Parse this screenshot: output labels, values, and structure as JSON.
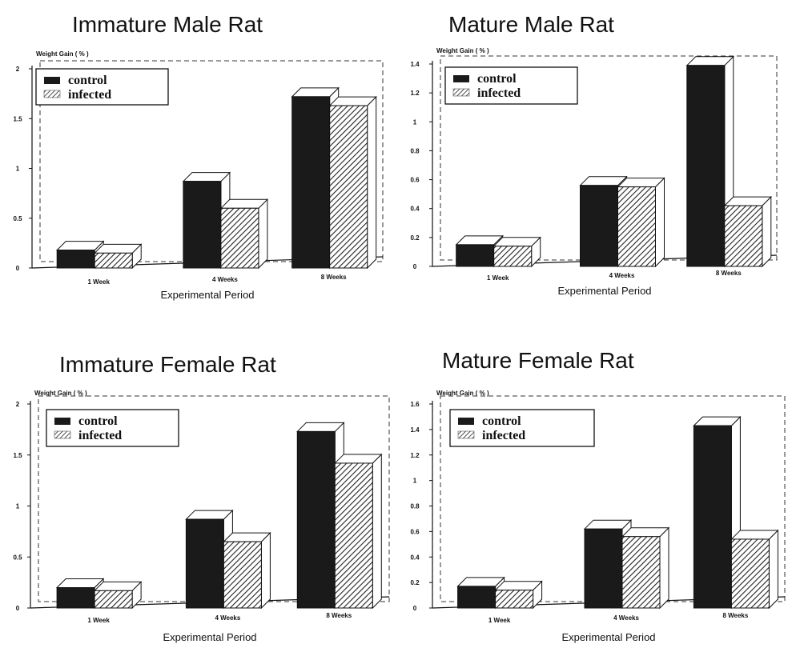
{
  "figure": {
    "legend": {
      "control": "control",
      "infected": "infected"
    }
  },
  "chart_data": [
    {
      "type": "bar",
      "title": "Immature  Male  Rat",
      "ylabel": "Weight Gain ( % )",
      "xlabel": "Experimental Period",
      "categories": [
        "1 Week",
        "4 Weeks",
        "8 Weeks"
      ],
      "series": [
        {
          "name": "control",
          "values": [
            0.18,
            0.87,
            1.72
          ]
        },
        {
          "name": "infected",
          "values": [
            0.15,
            0.6,
            1.63
          ]
        }
      ],
      "ylim": [
        0,
        2
      ],
      "yticks": [
        "0",
        "0.5",
        "1",
        "1.5",
        "2"
      ],
      "grid": false,
      "legend_position": "top-left",
      "colors": {
        "control": "#1a1a1a",
        "infected": "#8a8a8a"
      }
    },
    {
      "type": "bar",
      "title": "Mature Male Rat",
      "ylabel": "Weight Gain ( % )",
      "xlabel": "Experimental Period",
      "categories": [
        "1 Week",
        "4 Weeks",
        "8 Weeks"
      ],
      "series": [
        {
          "name": "control",
          "values": [
            0.15,
            0.56,
            1.39
          ]
        },
        {
          "name": "infected",
          "values": [
            0.14,
            0.55,
            0.42
          ]
        }
      ],
      "ylim": [
        0,
        1.4
      ],
      "yticks": [
        "0",
        "0.2",
        "0.4",
        "0.6",
        "0.8",
        "1",
        "1.2",
        "1.4"
      ],
      "grid": false,
      "legend_position": "top-left",
      "colors": {
        "control": "#1a1a1a",
        "infected": "#8a8a8a"
      }
    },
    {
      "type": "bar",
      "title": "Immature  Female  Rat",
      "ylabel": "Weight Gain ( % )",
      "xlabel": "Experimental Period",
      "categories": [
        "1 Week",
        "4 Weeks",
        "8 Weeks"
      ],
      "series": [
        {
          "name": "control",
          "values": [
            0.2,
            0.87,
            1.73
          ]
        },
        {
          "name": "infected",
          "values": [
            0.17,
            0.65,
            1.42
          ]
        }
      ],
      "ylim": [
        0,
        2
      ],
      "yticks": [
        "0",
        "0.5",
        "1",
        "1.5",
        "2"
      ],
      "grid": false,
      "legend_position": "top-left",
      "colors": {
        "control": "#1a1a1a",
        "infected": "#8a8a8a"
      }
    },
    {
      "type": "bar",
      "title": "Mature  Female  Rat",
      "ylabel": "Weight Gain ( % )",
      "xlabel": "Experimental Period",
      "categories": [
        "1 Week",
        "4 Weeks",
        "8 Weeks"
      ],
      "series": [
        {
          "name": "control",
          "values": [
            0.17,
            0.62,
            1.43
          ]
        },
        {
          "name": "infected",
          "values": [
            0.14,
            0.56,
            0.54
          ]
        }
      ],
      "ylim": [
        0,
        1.6
      ],
      "yticks": [
        "0",
        "0.2",
        "0.4",
        "0.6",
        "0.8",
        "1",
        "1.2",
        "1.4",
        "1.6"
      ],
      "grid": false,
      "legend_position": "top-left",
      "colors": {
        "control": "#1a1a1a",
        "infected": "#8a8a8a"
      }
    }
  ]
}
